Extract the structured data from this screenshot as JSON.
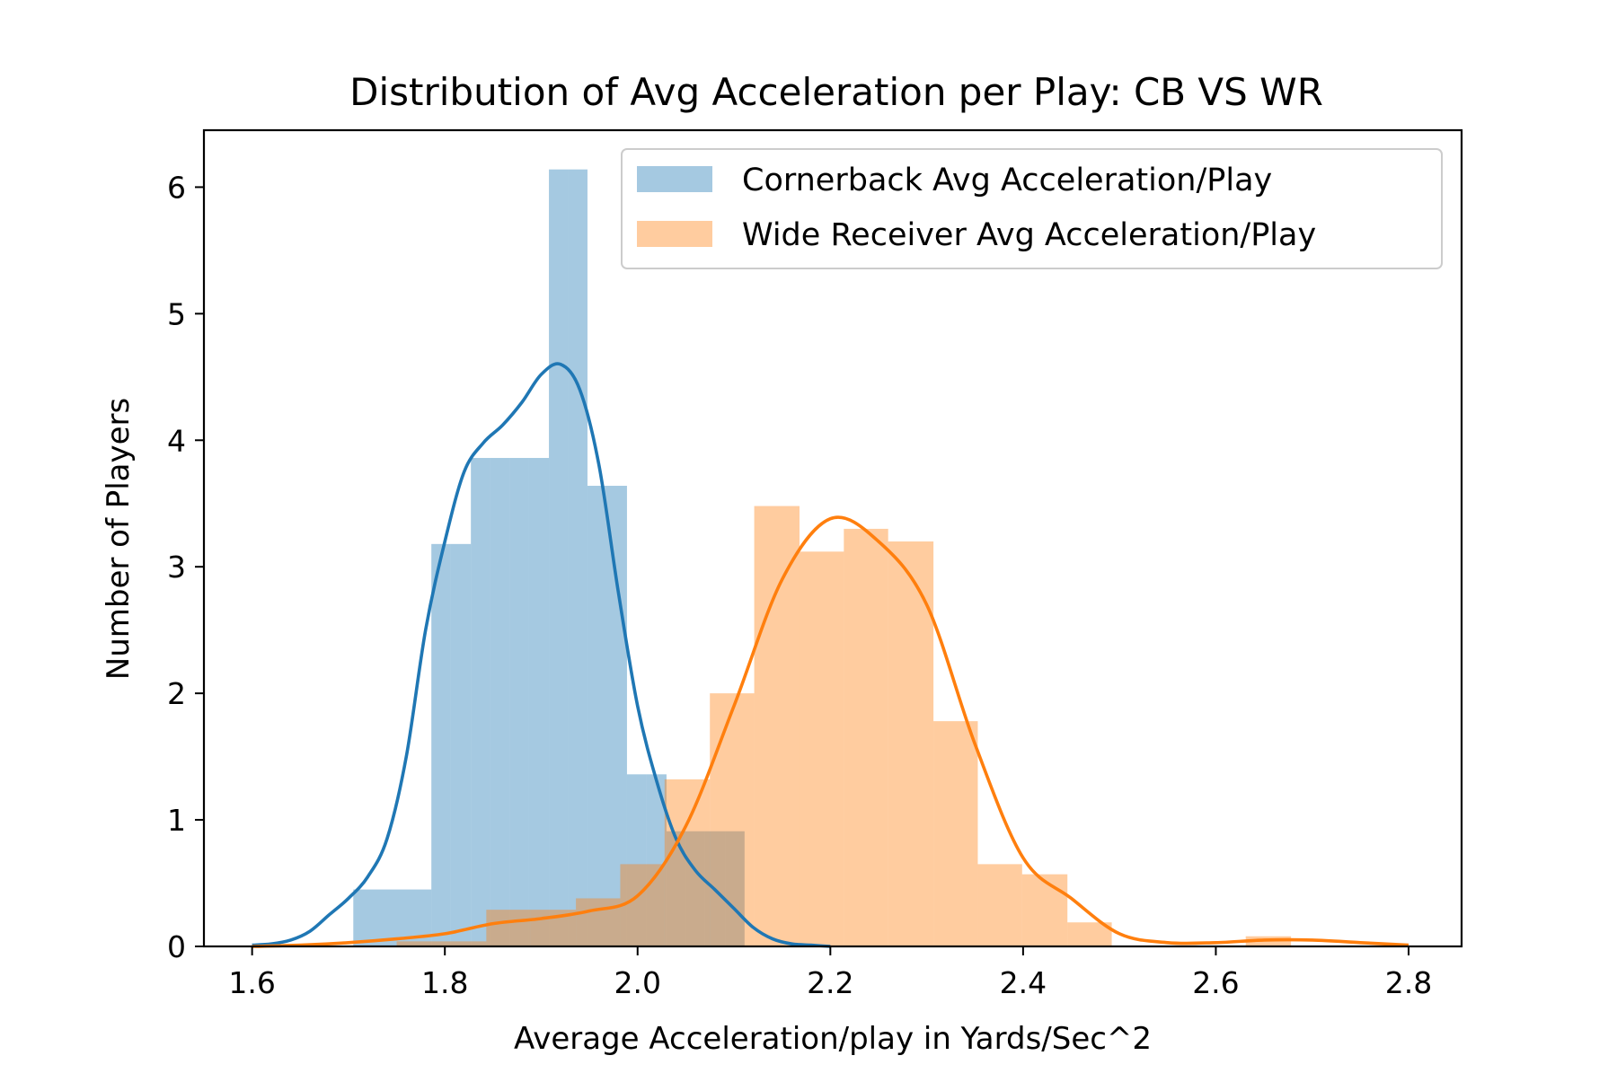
{
  "chart_data": {
    "type": "histogram",
    "title": "Distribution of Avg Acceleration per Play: CB VS WR",
    "xlabel": "Average Acceleration/play in Yards/Sec^2",
    "ylabel": "Number of Players",
    "xlim": [
      1.55,
      2.855
    ],
    "ylim": [
      0,
      6.45
    ],
    "xticks": [
      1.6,
      1.8,
      2.0,
      2.2,
      2.4,
      2.6,
      2.8
    ],
    "xtick_labels": [
      "1.6",
      "1.8",
      "2.0",
      "2.2",
      "2.4",
      "2.6",
      "2.8"
    ],
    "yticks": [
      0,
      1,
      2,
      3,
      4,
      5,
      6
    ],
    "ytick_labels": [
      "0",
      "1",
      "2",
      "3",
      "4",
      "5",
      "6"
    ],
    "grid": false,
    "legend_position": "top-right",
    "series": [
      {
        "name": "Cornerback Avg Acceleration/Play",
        "color": "#1f77b4",
        "bin_edges": [
          1.705,
          1.786,
          1.806,
          1.827,
          1.847,
          1.867,
          1.887,
          1.908,
          1.928,
          1.948,
          1.969,
          1.989,
          2.009,
          2.03,
          2.05,
          2.07,
          2.091,
          2.111
        ],
        "hist_values": [
          0.45,
          3.18,
          3.18,
          3.86,
          3.86,
          3.86,
          3.86,
          6.14,
          6.14,
          3.64,
          3.64,
          1.36,
          1.36,
          0.91,
          0.91,
          0.91,
          0.91
        ],
        "kde": {
          "x": [
            1.6,
            1.62,
            1.64,
            1.66,
            1.68,
            1.7,
            1.72,
            1.74,
            1.76,
            1.78,
            1.8,
            1.82,
            1.84,
            1.86,
            1.88,
            1.9,
            1.92,
            1.94,
            1.96,
            1.98,
            2.0,
            2.02,
            2.04,
            2.06,
            2.08,
            2.1,
            2.12,
            2.14,
            2.16,
            2.18,
            2.2
          ],
          "y": [
            0.01,
            0.02,
            0.05,
            0.12,
            0.25,
            0.38,
            0.55,
            0.85,
            1.5,
            2.5,
            3.2,
            3.75,
            3.98,
            4.12,
            4.3,
            4.52,
            4.6,
            4.4,
            3.8,
            2.8,
            1.9,
            1.3,
            0.85,
            0.6,
            0.45,
            0.3,
            0.15,
            0.06,
            0.02,
            0.01,
            0.0
          ]
        }
      },
      {
        "name": "Wide Receiver Avg Acceleration/Play",
        "color": "#ff7f0e",
        "bin_edges": [
          1.75,
          1.796,
          1.843,
          1.889,
          1.936,
          1.982,
          2.028,
          2.075,
          2.121,
          2.168,
          2.214,
          2.26,
          2.307,
          2.353,
          2.399,
          2.446,
          2.492,
          2.538,
          2.585,
          2.631,
          2.678,
          2.724,
          2.77
        ],
        "hist_values": [
          0.04,
          0.04,
          0.29,
          0.29,
          0.38,
          0.65,
          1.32,
          2.0,
          3.48,
          3.12,
          3.3,
          3.2,
          1.78,
          0.65,
          0.57,
          0.19,
          0.0,
          0.0,
          0.0,
          0.08,
          0.0,
          0.0
        ],
        "kde": {
          "x": [
            1.6,
            1.65,
            1.7,
            1.75,
            1.8,
            1.85,
            1.9,
            1.95,
            2.0,
            2.05,
            2.1,
            2.15,
            2.2,
            2.25,
            2.3,
            2.35,
            2.4,
            2.45,
            2.5,
            2.55,
            2.6,
            2.65,
            2.7,
            2.75,
            2.8
          ],
          "y": [
            0.0,
            0.01,
            0.03,
            0.06,
            0.1,
            0.18,
            0.22,
            0.28,
            0.4,
            0.95,
            1.9,
            2.9,
            3.38,
            3.2,
            2.7,
            1.6,
            0.7,
            0.38,
            0.1,
            0.03,
            0.03,
            0.05,
            0.05,
            0.03,
            0.01
          ]
        }
      }
    ]
  }
}
